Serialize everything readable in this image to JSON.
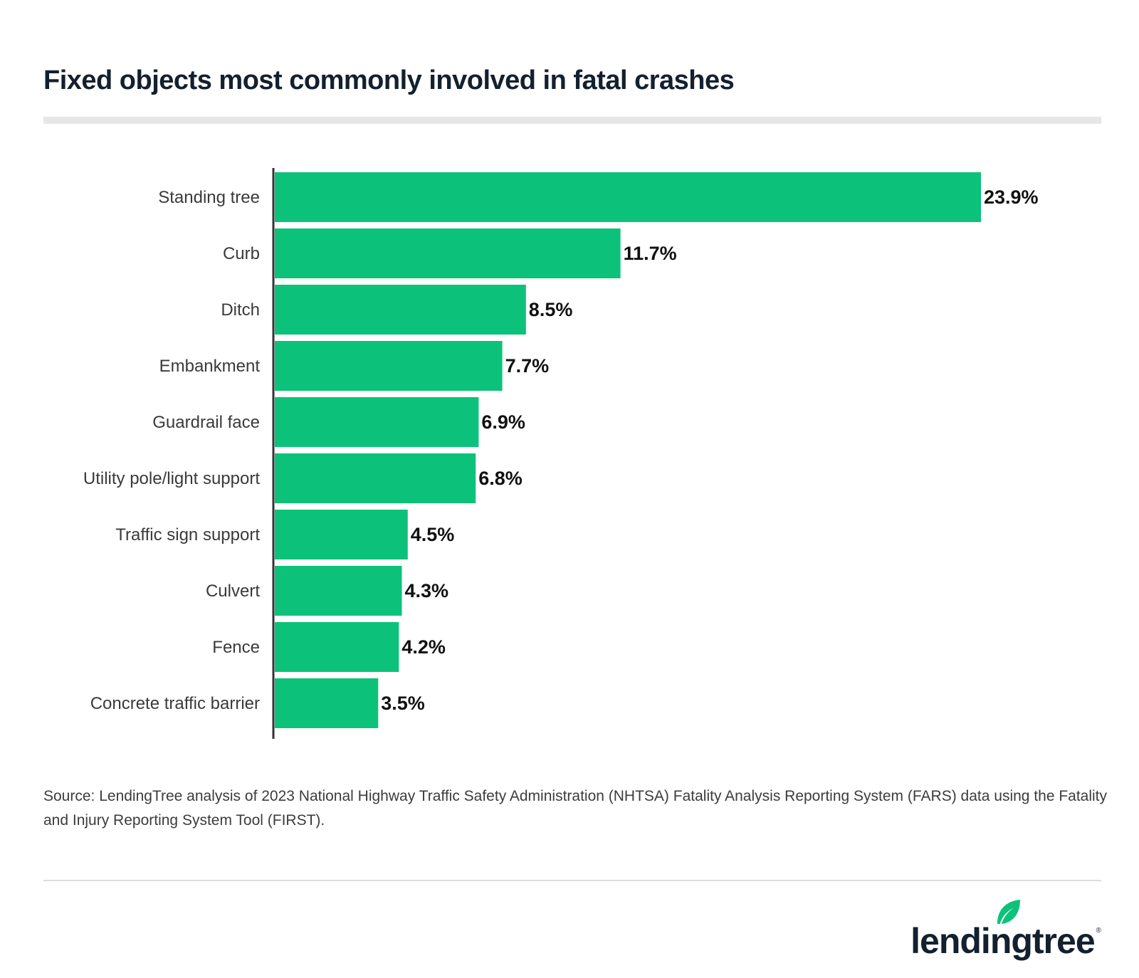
{
  "chart_data": {
    "type": "bar",
    "orientation": "horizontal",
    "title": "Fixed objects most commonly involved in fatal crashes",
    "categories": [
      "Standing tree",
      "Curb",
      "Ditch",
      "Embankment",
      "Guardrail face",
      "Utility pole/light support",
      "Traffic sign support",
      "Culvert",
      "Fence",
      "Concrete traffic barrier"
    ],
    "values": [
      23.9,
      11.7,
      8.5,
      7.7,
      6.9,
      6.8,
      4.5,
      4.3,
      4.2,
      3.5
    ],
    "labels": [
      "23.9%",
      "11.7%",
      "8.5%",
      "7.7%",
      "6.9%",
      "6.8%",
      "4.5%",
      "4.3%",
      "4.2%",
      "3.5%"
    ],
    "unit": "%",
    "xlim": [
      0,
      23.9
    ],
    "grid": false,
    "bar_color": "#0cc27a"
  },
  "source": "Source: LendingTree analysis of 2023 National Highway Traffic Safety Administration (NHTSA) Fatality Analysis Reporting System (FARS) data using the Fatality and Injury Reporting System Tool (FIRST).",
  "logo": {
    "text": "lendingtree",
    "text_color": "#13202f",
    "leaf_color": "#0cc27a"
  }
}
